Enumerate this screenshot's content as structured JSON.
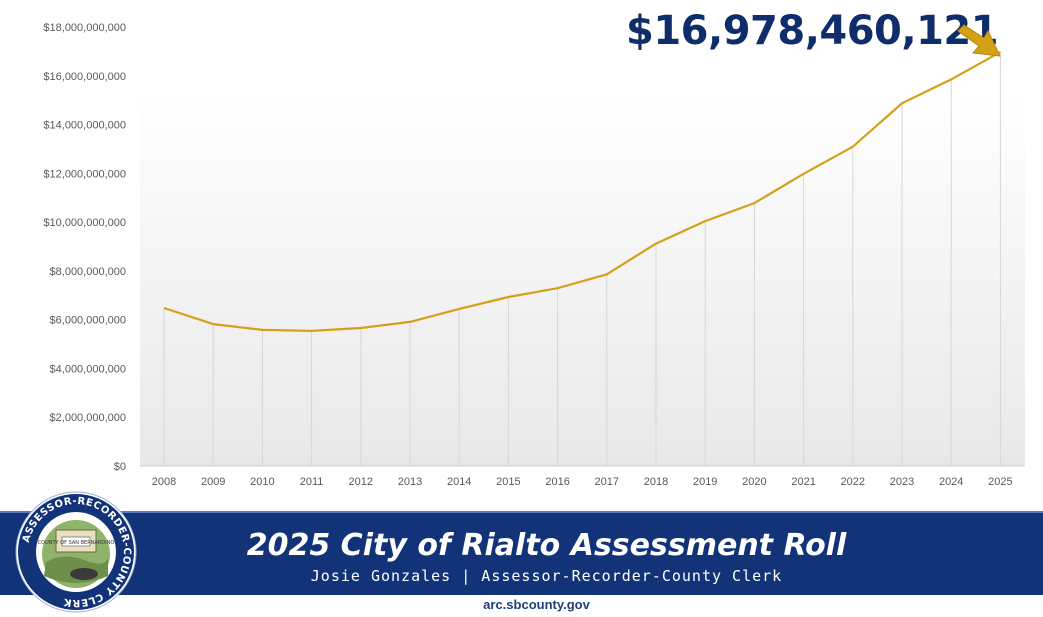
{
  "headline": {
    "value": "$16,978,460,121",
    "color": "#0f2d6b"
  },
  "chart_data": {
    "type": "line",
    "title": "",
    "xlabel": "",
    "ylabel": "",
    "x": [
      "2008",
      "2009",
      "2010",
      "2011",
      "2012",
      "2013",
      "2014",
      "2015",
      "2016",
      "2017",
      "2018",
      "2019",
      "2020",
      "2021",
      "2022",
      "2023",
      "2024",
      "2025"
    ],
    "series": [
      {
        "values": [
          6480000000,
          5820000000,
          5580000000,
          5540000000,
          5660000000,
          5910000000,
          6440000000,
          6930000000,
          7290000000,
          7860000000,
          9120000000,
          10040000000,
          10780000000,
          11980000000,
          13090000000,
          14870000000,
          15850000000,
          16978460121
        ],
        "color": "#d4a017"
      }
    ],
    "ylim": [
      0,
      18000000000
    ],
    "yticks": [
      0,
      2000000000,
      4000000000,
      6000000000,
      8000000000,
      10000000000,
      12000000000,
      14000000000,
      16000000000,
      18000000000
    ],
    "ytick_labels": [
      "$0",
      "$2,000,000,000",
      "$4,000,000,000",
      "$6,000,000,000",
      "$8,000,000,000",
      "$10,000,000,000",
      "$12,000,000,000",
      "$14,000,000,000",
      "$16,000,000,000",
      "$18,000,000,000"
    ],
    "grid": "vertical drop lines",
    "legend": "none"
  },
  "banner": {
    "title": "2025 City of Rialto Assessment Roll",
    "subtitle": "Josie Gonzales | Assessor-Recorder-County Clerk",
    "website": "arc.sbcounty.gov",
    "color": "#123377"
  },
  "seal": {
    "ring_text": "ASSESSOR-RECORDER-COUNTY CLERK",
    "center_text": "COUNTY OF SAN BERNARDINO"
  },
  "arrow": {
    "icon": "arrow-down-right-icon",
    "color": "#d4a017"
  }
}
